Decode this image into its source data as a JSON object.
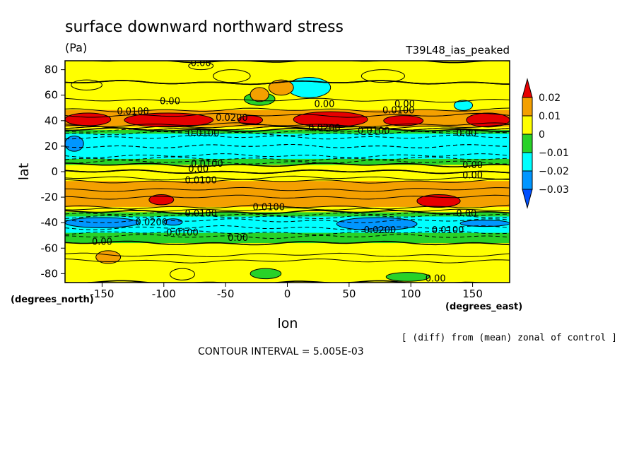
{
  "chart_data": {
    "type": "heatmap",
    "title": "surface downward northward stress",
    "units": "(Pa)",
    "run_label": "T39L48_ias_peaked",
    "xlabel": "lon",
    "ylabel": "lat",
    "x_units": "(degrees_east)",
    "y_units": "(degrees_north)",
    "xlim": [
      -180,
      180
    ],
    "ylim": [
      -87,
      87
    ],
    "x_ticks": [
      -150,
      -100,
      -50,
      0,
      50,
      100,
      150
    ],
    "x_tick_labels": [
      "-150",
      "-100",
      "-50",
      "0",
      "50",
      "100",
      "150"
    ],
    "y_ticks": [
      80,
      60,
      40,
      20,
      0,
      -20,
      -40,
      -60,
      -80
    ],
    "y_tick_labels": [
      "80",
      "60",
      "40",
      "20",
      "0",
      "-20",
      "-40",
      "-60",
      "-80"
    ],
    "colorbar": {
      "levels": [
        0.02,
        0.01,
        0,
        -0.01,
        -0.02,
        -0.03
      ],
      "labels": [
        "0.02",
        "0.01",
        "0",
        "−0.01",
        "−0.02",
        "−0.03"
      ],
      "colors": [
        "#e60000",
        "#f4a000",
        "#ffff00",
        "#28d228",
        "#00ffff",
        "#0096ff",
        "#0050ff"
      ]
    },
    "lat_profile": [
      {
        "lat": 87,
        "v": 0.0
      },
      {
        "lat": 80,
        "v": 0.001
      },
      {
        "lat": 70,
        "v": 0.0
      },
      {
        "lat": 60,
        "v": 0.003
      },
      {
        "lat": 50,
        "v": 0.008
      },
      {
        "lat": 45,
        "v": 0.014
      },
      {
        "lat": 41,
        "v": 0.019
      },
      {
        "lat": 37,
        "v": 0.016
      },
      {
        "lat": 34,
        "v": 0.005
      },
      {
        "lat": 31,
        "v": -0.008
      },
      {
        "lat": 26,
        "v": -0.017
      },
      {
        "lat": 20,
        "v": -0.02
      },
      {
        "lat": 14,
        "v": -0.018
      },
      {
        "lat": 8,
        "v": -0.006
      },
      {
        "lat": 4,
        "v": 0.003
      },
      {
        "lat": 0,
        "v": 0.0
      },
      {
        "lat": -4,
        "v": 0.003
      },
      {
        "lat": -8,
        "v": 0.011
      },
      {
        "lat": -14,
        "v": 0.015
      },
      {
        "lat": -20,
        "v": 0.015
      },
      {
        "lat": -26,
        "v": 0.014
      },
      {
        "lat": -31,
        "v": 0.002
      },
      {
        "lat": -36,
        "v": -0.012
      },
      {
        "lat": -41,
        "v": -0.018
      },
      {
        "lat": -46,
        "v": -0.013
      },
      {
        "lat": -52,
        "v": -0.003
      },
      {
        "lat": -60,
        "v": 0.003
      },
      {
        "lat": -68,
        "v": 0.006
      },
      {
        "lat": -76,
        "v": 0.002
      },
      {
        "lat": -87,
        "v": 0.0
      }
    ],
    "cells": [
      {
        "lon": [
          -180,
          -143
        ],
        "lat": [
          36,
          46
        ],
        "v": 0.025
      },
      {
        "lon": [
          -132,
          -60
        ],
        "lat": [
          35,
          46
        ],
        "v": 0.025
      },
      {
        "lon": [
          -40,
          -20
        ],
        "lat": [
          37,
          44
        ],
        "v": 0.025
      },
      {
        "lon": [
          5,
          65
        ],
        "lat": [
          35,
          47
        ],
        "v": 0.025
      },
      {
        "lon": [
          78,
          110
        ],
        "lat": [
          36,
          44
        ],
        "v": 0.025
      },
      {
        "lon": [
          145,
          180
        ],
        "lat": [
          35,
          46
        ],
        "v": 0.025
      },
      {
        "lon": [
          -112,
          -92
        ],
        "lat": [
          -26,
          -18
        ],
        "v": 0.025
      },
      {
        "lon": [
          105,
          140
        ],
        "lat": [
          -28,
          -18
        ],
        "v": 0.025
      },
      {
        "lon": [
          -180,
          -120
        ],
        "lat": [
          -44,
          -36
        ],
        "v": -0.025
      },
      {
        "lon": [
          -100,
          -85
        ],
        "lat": [
          -42,
          -37
        ],
        "v": -0.025
      },
      {
        "lon": [
          40,
          105
        ],
        "lat": [
          -46,
          -36
        ],
        "v": -0.025
      },
      {
        "lon": [
          140,
          180
        ],
        "lat": [
          -43,
          -38
        ],
        "v": -0.025
      },
      {
        "lon": [
          -180,
          -165
        ],
        "lat": [
          16,
          28
        ],
        "v": -0.025
      },
      {
        "lon": [
          0,
          35
        ],
        "lat": [
          58,
          74
        ],
        "v": -0.015
      },
      {
        "lon": [
          -35,
          -10
        ],
        "lat": [
          52,
          62
        ],
        "v": -0.006
      },
      {
        "lon": [
          -15,
          5
        ],
        "lat": [
          60,
          72
        ],
        "v": 0.013
      },
      {
        "lon": [
          -30,
          -15
        ],
        "lat": [
          55,
          66
        ],
        "v": 0.013
      },
      {
        "lon": [
          -155,
          -135
        ],
        "lat": [
          -72,
          -62
        ],
        "v": 0.013
      },
      {
        "lon": [
          -95,
          -75
        ],
        "lat": [
          -85,
          -76
        ],
        "v": 0.004
      },
      {
        "lon": [
          -30,
          -5
        ],
        "lat": [
          -84,
          -76
        ],
        "v": -0.006
      },
      {
        "lon": [
          80,
          115
        ],
        "lat": [
          -86,
          -79
        ],
        "v": -0.006
      },
      {
        "lon": [
          -60,
          -30
        ],
        "lat": [
          70,
          80
        ],
        "v": 0.006
      },
      {
        "lon": [
          60,
          95
        ],
        "lat": [
          70,
          80
        ],
        "v": 0.006
      },
      {
        "lon": [
          135,
          150
        ],
        "lat": [
          48,
          56
        ],
        "v": -0.013
      },
      {
        "lon": [
          -80,
          -60
        ],
        "lat": [
          80,
          86
        ],
        "v": 0.004
      },
      {
        "lon": [
          -175,
          -150
        ],
        "lat": [
          64,
          72
        ],
        "v": 0.004
      }
    ],
    "contour_labels": [
      {
        "lon": -70,
        "lat": 85,
        "text": "0.00"
      },
      {
        "lon": -95,
        "lat": 55,
        "text": "0.00"
      },
      {
        "lon": -125,
        "lat": 47,
        "text": "0.0100"
      },
      {
        "lon": -45,
        "lat": 42,
        "text": "0.0200"
      },
      {
        "lon": 30,
        "lat": 53,
        "text": "0.00"
      },
      {
        "lon": 90,
        "lat": 48,
        "text": "0.0100"
      },
      {
        "lon": 95,
        "lat": 53,
        "text": "0.00"
      },
      {
        "lon": 30,
        "lat": 34,
        "text": "0.0200"
      },
      {
        "lon": 70,
        "lat": 32,
        "text": "0.0100"
      },
      {
        "lon": -68,
        "lat": 30,
        "text": "0.0100"
      },
      {
        "lon": 145,
        "lat": 30,
        "text": "0.00"
      },
      {
        "lon": -65,
        "lat": 6,
        "text": "0.0100"
      },
      {
        "lon": -72,
        "lat": 2,
        "text": "0.00"
      },
      {
        "lon": -70,
        "lat": -7,
        "text": "0.0100"
      },
      {
        "lon": 150,
        "lat": 5,
        "text": "0.00"
      },
      {
        "lon": 150,
        "lat": -3,
        "text": "0.00"
      },
      {
        "lon": -70,
        "lat": -33,
        "text": "0.0100"
      },
      {
        "lon": -15,
        "lat": -28,
        "text": "0.0100"
      },
      {
        "lon": -110,
        "lat": -40,
        "text": "0.0200"
      },
      {
        "lon": -85,
        "lat": -48,
        "text": "0.0100"
      },
      {
        "lon": -40,
        "lat": -52,
        "text": "0.00"
      },
      {
        "lon": 75,
        "lat": -46,
        "text": "0.0200"
      },
      {
        "lon": 130,
        "lat": -46,
        "text": "0.0100"
      },
      {
        "lon": 145,
        "lat": -33,
        "text": "0.00"
      },
      {
        "lon": -150,
        "lat": -55,
        "text": "0.00"
      },
      {
        "lon": 120,
        "lat": -84,
        "text": "0.00"
      }
    ]
  },
  "footer": {
    "diff_note": "[ (diff) from (mean) zonal of control ]",
    "contour_interval": "CONTOUR INTERVAL = 5.005E-03"
  }
}
